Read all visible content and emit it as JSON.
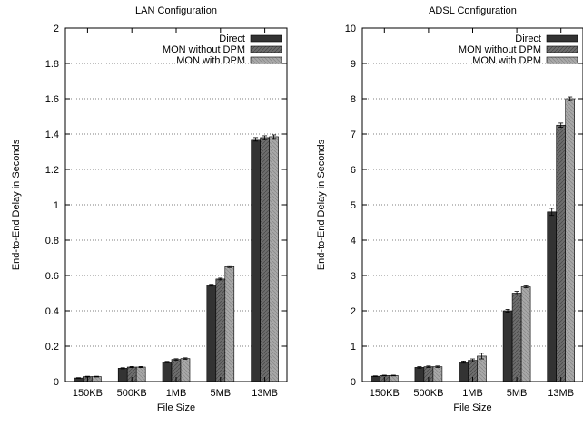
{
  "chart_data": [
    {
      "type": "bar",
      "title": "LAN Configuration",
      "xlabel": "File Size",
      "ylabel": "End-to-End Delay in Seconds",
      "categories": [
        "150KB",
        "500KB",
        "1MB",
        "5MB",
        "13MB"
      ],
      "ylim": [
        0,
        2
      ],
      "yticks": [
        0,
        0.2,
        0.4,
        0.6,
        0.8,
        1,
        1.2,
        1.4,
        1.6,
        1.8,
        2
      ],
      "ytick_labels": [
        "0",
        "0.2",
        "0.4",
        "0.6",
        "0.8",
        "1",
        "1.2",
        "1.4",
        "1.6",
        "1.8",
        "2"
      ],
      "grid": true,
      "error_bars": true,
      "legend_position": "top-right",
      "series": [
        {
          "name": "Direct",
          "color": "#333333",
          "values": [
            0.02,
            0.075,
            0.11,
            0.545,
            1.37
          ],
          "errors": [
            0.002,
            0.003,
            0.004,
            0.005,
            0.01
          ]
        },
        {
          "name": "MON without DPM",
          "color": "#6e6e6e",
          "values": [
            0.028,
            0.082,
            0.125,
            0.58,
            1.38
          ],
          "errors": [
            0.002,
            0.003,
            0.004,
            0.005,
            0.01
          ]
        },
        {
          "name": "MON with DPM",
          "color": "#a9a9a9",
          "values": [
            0.028,
            0.082,
            0.13,
            0.65,
            1.385
          ],
          "errors": [
            0.002,
            0.003,
            0.004,
            0.005,
            0.01
          ]
        }
      ]
    },
    {
      "type": "bar",
      "title": "ADSL Configuration",
      "xlabel": "File Size",
      "ylabel": "End-to-End Delay in Seconds",
      "categories": [
        "150KB",
        "500KB",
        "1MB",
        "5MB",
        "13MB"
      ],
      "ylim": [
        0,
        10
      ],
      "yticks": [
        0,
        1,
        2,
        3,
        4,
        5,
        6,
        7,
        8,
        9,
        10
      ],
      "ytick_labels": [
        "0",
        "1",
        "2",
        "3",
        "4",
        "5",
        "6",
        "7",
        "8",
        "9",
        "10"
      ],
      "grid": true,
      "error_bars": true,
      "legend_position": "top-right",
      "series": [
        {
          "name": "Direct",
          "color": "#333333",
          "values": [
            0.15,
            0.4,
            0.55,
            2.0,
            4.8
          ],
          "errors": [
            0.01,
            0.02,
            0.03,
            0.04,
            0.1
          ]
        },
        {
          "name": "MON without DPM",
          "color": "#6e6e6e",
          "values": [
            0.17,
            0.42,
            0.6,
            2.5,
            7.25
          ],
          "errors": [
            0.01,
            0.02,
            0.04,
            0.05,
            0.06
          ]
        },
        {
          "name": "MON with DPM",
          "color": "#a9a9a9",
          "values": [
            0.17,
            0.42,
            0.72,
            2.68,
            8.0
          ],
          "errors": [
            0.01,
            0.02,
            0.08,
            0.03,
            0.05
          ]
        }
      ]
    }
  ]
}
